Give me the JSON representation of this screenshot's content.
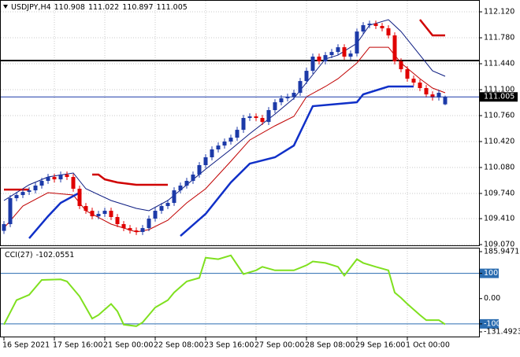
{
  "chart_data": {
    "type": "candlestick",
    "symbol": "USDJPY,H4",
    "bull_color": "#1c3aa8",
    "bear_color": "#e00000",
    "open": [
      109.25,
      109.338,
      109.678,
      109.719,
      109.76,
      109.781,
      109.843,
      109.905,
      109.956,
      109.925,
      109.987,
      109.956,
      109.802,
      109.575,
      109.513,
      109.441,
      109.472,
      109.513,
      109.431,
      109.338,
      109.286,
      109.255,
      109.235,
      109.286,
      109.41,
      109.513,
      109.575,
      109.616,
      109.781,
      109.843,
      109.905,
      109.987,
      110.111,
      110.214,
      110.317,
      110.368,
      110.42,
      110.471,
      110.574,
      110.729,
      110.75,
      110.729,
      110.677,
      110.832,
      110.935,
      110.987,
      111.007,
      111.059,
      111.213,
      111.347,
      111.533,
      111.471,
      111.553,
      111.594,
      111.656,
      111.533,
      111.574,
      111.862,
      111.945,
      111.965,
      111.935,
      111.904,
      111.811,
      111.471,
      111.368,
      111.244,
      111.193,
      111.121,
      111.038,
      110.997,
      110.908
    ],
    "high": [
      109.378,
      109.718,
      109.759,
      109.8,
      109.821,
      109.883,
      109.945,
      109.996,
      109.996,
      110.027,
      110.027,
      109.996,
      109.842,
      109.615,
      109.553,
      109.512,
      109.553,
      109.553,
      109.471,
      109.378,
      109.326,
      109.295,
      109.326,
      109.45,
      109.553,
      109.615,
      109.656,
      109.821,
      109.883,
      109.945,
      110.027,
      110.151,
      110.254,
      110.357,
      110.408,
      110.46,
      110.511,
      110.614,
      110.769,
      110.79,
      110.79,
      110.769,
      110.872,
      110.975,
      111.027,
      111.047,
      111.099,
      111.253,
      111.387,
      111.573,
      111.573,
      111.593,
      111.634,
      111.696,
      111.696,
      111.614,
      111.902,
      111.985,
      112.005,
      112.005,
      111.975,
      111.944,
      111.851,
      111.511,
      111.408,
      111.284,
      111.233,
      111.161,
      111.078,
      111.099,
      111.022
    ],
    "low": [
      109.21,
      109.298,
      109.638,
      109.679,
      109.72,
      109.741,
      109.803,
      109.865,
      109.885,
      109.885,
      109.916,
      109.762,
      109.535,
      109.473,
      109.401,
      109.401,
      109.432,
      109.391,
      109.298,
      109.246,
      109.215,
      109.195,
      109.195,
      109.246,
      109.37,
      109.473,
      109.535,
      109.576,
      109.741,
      109.803,
      109.865,
      109.947,
      110.071,
      110.174,
      110.277,
      110.328,
      110.38,
      110.431,
      110.534,
      110.689,
      110.689,
      110.637,
      110.637,
      110.792,
      110.895,
      110.947,
      110.967,
      111.019,
      111.173,
      111.307,
      111.431,
      111.431,
      111.513,
      111.554,
      111.493,
      111.493,
      111.534,
      111.822,
      111.905,
      111.895,
      111.864,
      111.771,
      111.431,
      111.328,
      111.204,
      111.153,
      111.081,
      110.998,
      110.957,
      110.957,
      110.897
    ],
    "close": [
      109.338,
      109.678,
      109.719,
      109.76,
      109.781,
      109.843,
      109.905,
      109.956,
      109.925,
      109.987,
      109.956,
      109.802,
      109.575,
      109.513,
      109.441,
      109.472,
      109.513,
      109.431,
      109.338,
      109.286,
      109.255,
      109.235,
      109.286,
      109.41,
      109.513,
      109.575,
      109.616,
      109.781,
      109.843,
      109.905,
      109.987,
      110.111,
      110.214,
      110.317,
      110.368,
      110.42,
      110.471,
      110.574,
      110.729,
      110.75,
      110.729,
      110.677,
      110.832,
      110.935,
      110.987,
      111.007,
      111.059,
      111.213,
      111.347,
      111.533,
      111.471,
      111.553,
      111.594,
      111.656,
      111.533,
      111.574,
      111.862,
      111.945,
      111.965,
      111.935,
      111.904,
      111.811,
      111.471,
      111.368,
      111.244,
      111.193,
      111.121,
      111.038,
      110.997,
      111.059,
      111.005
    ],
    "ylim": [
      109.06,
      112.275
    ],
    "yticks": [
      {
        "value": 112.12,
        "label": "112.120"
      },
      {
        "value": 111.78,
        "label": "111.780"
      },
      {
        "value": 111.44,
        "label": "111.440"
      },
      {
        "value": 111.1,
        "label": "111.100"
      },
      {
        "value": 110.76,
        "label": "110.760"
      },
      {
        "value": 110.42,
        "label": "110.420"
      },
      {
        "value": 110.08,
        "label": "110.080"
      },
      {
        "value": 109.74,
        "label": "109.740"
      },
      {
        "value": 109.41,
        "label": "109.410"
      },
      {
        "value": 109.07,
        "label": "109.070"
      }
    ],
    "xlim": [
      -0.625,
      75.375
    ],
    "xticks": [
      {
        "value": 0,
        "label": "16 Sep 2021"
      },
      {
        "value": 8,
        "label": "17 Sep 16:00"
      },
      {
        "value": 16,
        "label": "21 Sep 00:00"
      },
      {
        "value": 24,
        "label": "22 Sep 08:00"
      },
      {
        "value": 32,
        "label": "23 Sep 16:00"
      },
      {
        "value": 40,
        "label": "27 Sep 00:00"
      },
      {
        "value": 48,
        "label": "28 Sep 08:00"
      },
      {
        "value": 56,
        "label": "29 Sep 16:00"
      },
      {
        "value": 64,
        "label": "1 Oct 00:00"
      }
    ],
    "grid": true,
    "bid_color": "#1c3aa8",
    "hlines": [
      {
        "value": 111.481,
        "color": "#000000"
      }
    ],
    "bands": [
      {
        "color": "#0a1a80",
        "width": 1,
        "x": [
          0,
          4,
          7,
          11,
          13,
          17,
          21,
          23,
          26,
          29,
          32,
          36,
          39,
          43,
          46,
          49,
          51,
          53,
          56,
          58,
          61,
          63,
          66,
          68,
          70
        ],
        "values": [
          109.647,
          109.853,
          109.956,
          110.008,
          109.802,
          109.647,
          109.544,
          109.513,
          109.647,
          109.853,
          110.059,
          110.317,
          110.523,
          110.78,
          110.987,
          111.296,
          111.502,
          111.553,
          111.708,
          111.945,
          112.017,
          111.862,
          111.553,
          111.347,
          111.275
        ]
      },
      {
        "color": "#c00000",
        "width": 1,
        "x": [
          0,
          3,
          7,
          11,
          13,
          17,
          21,
          23,
          26,
          29,
          32,
          36,
          39,
          43,
          46,
          48,
          51,
          53,
          56,
          58,
          61,
          63,
          66,
          68,
          70
        ],
        "values": [
          109.286,
          109.575,
          109.75,
          109.719,
          109.513,
          109.338,
          109.235,
          109.266,
          109.389,
          109.616,
          109.802,
          110.162,
          110.44,
          110.626,
          110.75,
          111.007,
          111.141,
          111.244,
          111.45,
          111.656,
          111.656,
          111.45,
          111.244,
          111.121,
          111.059
        ]
      },
      {
        "color": "#d00000",
        "width": 2.5,
        "x": [
          0,
          4,
          null,
          14,
          15,
          16,
          18,
          21,
          26,
          null,
          66,
          68,
          70
        ],
        "values": [
          109.791,
          109.791,
          null,
          109.987,
          109.987,
          109.925,
          109.884,
          109.853,
          109.853,
          null,
          112.017,
          111.811,
          111.811
        ]
      },
      {
        "color": "#1030c8",
        "width": 2.5,
        "x": [
          4,
          7,
          9,
          12,
          null,
          28,
          32,
          36,
          39,
          43,
          46,
          49,
          56,
          57,
          61,
          65
        ],
        "values": [
          109.152,
          109.441,
          109.616,
          109.75,
          null,
          109.183,
          109.472,
          109.884,
          110.131,
          110.214,
          110.368,
          110.884,
          110.935,
          111.038,
          111.141,
          111.141
        ]
      }
    ],
    "cci": {
      "label": "CCI(27)",
      "color": "#7fe01f",
      "level_color": "#2a6cb0",
      "x": [
        0,
        2,
        4,
        6,
        9,
        10,
        12,
        13,
        14,
        15,
        17,
        18,
        19,
        21,
        22,
        24,
        26,
        27,
        29,
        31,
        32,
        34,
        36,
        38,
        40,
        41,
        43,
        46,
        48,
        49,
        51,
        53,
        54,
        56,
        57,
        59,
        61,
        62,
        63,
        64,
        66,
        67,
        69,
        70
      ],
      "values": [
        -103,
        -6,
        15,
        74,
        76,
        68,
        9,
        -35,
        -79,
        -65,
        -21,
        -50,
        -103,
        -109,
        -94,
        -35,
        -6,
        24,
        68,
        82,
        162,
        156,
        171,
        97,
        112,
        126,
        112,
        112,
        132,
        147,
        141,
        126,
        91,
        156,
        141,
        126,
        112,
        24,
        3,
        -21,
        -65,
        -85,
        -85,
        -102.0551
      ],
      "ylim": [
        -131.4923,
        185.9471
      ],
      "yticks": [
        185.9471,
        100,
        {
          "value": 0,
          "label": "0.00"
        },
        -100,
        -131.4923
      ],
      "levels": [
        100,
        -100
      ]
    }
  }
}
